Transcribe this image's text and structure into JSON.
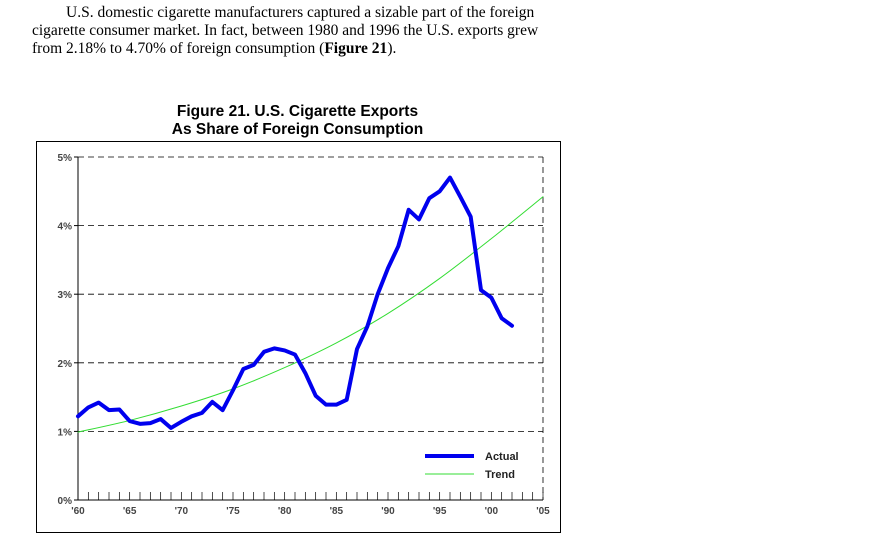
{
  "paragraph": {
    "line1": "U.S. domestic cigarette manufacturers captured a sizable part of the foreign",
    "line2": "cigarette consumer market.  In fact, between 1980 and 1996 the U.S. exports grew",
    "line3_prefix": "from 2.18% to 4.70% of foreign consumption (",
    "line3_bold": "Figure 21",
    "line3_suffix": ")."
  },
  "chart_data": {
    "type": "line",
    "title": "Figure 21.  U.S. Cigarette Exports",
    "subtitle": "As Share of Foreign Consumption",
    "xlabel": "",
    "ylabel": "",
    "xlim": [
      1960,
      2005
    ],
    "ylim": [
      0,
      5
    ],
    "x_tick_values": [
      1960,
      1965,
      1970,
      1975,
      1980,
      1985,
      1990,
      1995,
      2000,
      2005
    ],
    "x_tick_labels": [
      "'60",
      "'65",
      "'70",
      "'75",
      "'80",
      "'85",
      "'90",
      "'95",
      "'00",
      "'05"
    ],
    "y_tick_values": [
      0,
      1,
      2,
      3,
      4,
      5
    ],
    "y_tick_labels": [
      "0%",
      "1%",
      "2%",
      "3%",
      "4%",
      "5%"
    ],
    "grid": "horizontal dashed",
    "legend_position": "bottom-right",
    "colors": {
      "actual": "#0000ee",
      "trend": "#33dd33"
    },
    "series": [
      {
        "name": "Actual",
        "x": [
          1960,
          1961,
          1962,
          1963,
          1964,
          1965,
          1966,
          1967,
          1968,
          1969,
          1970,
          1971,
          1972,
          1973,
          1974,
          1975,
          1976,
          1977,
          1978,
          1979,
          1980,
          1981,
          1982,
          1983,
          1984,
          1985,
          1986,
          1987,
          1988,
          1989,
          1990,
          1991,
          1992,
          1993,
          1994,
          1995,
          1996,
          1997,
          1998,
          1999,
          2000,
          2001,
          2002
        ],
        "values": [
          1.22,
          1.35,
          1.42,
          1.31,
          1.32,
          1.15,
          1.11,
          1.12,
          1.18,
          1.05,
          1.14,
          1.22,
          1.27,
          1.43,
          1.31,
          1.6,
          1.91,
          1.97,
          2.16,
          2.21,
          2.18,
          2.12,
          1.85,
          1.52,
          1.39,
          1.39,
          1.46,
          2.2,
          2.53,
          3.0,
          3.38,
          3.7,
          4.23,
          4.09,
          4.4,
          4.5,
          4.7,
          4.42,
          4.13,
          3.06,
          2.95,
          2.65,
          2.54
        ]
      },
      {
        "name": "Trend",
        "x": [
          1960,
          1965,
          1970,
          1975,
          1980,
          1985,
          1990,
          1995,
          2000,
          2005
        ],
        "values": [
          0.99,
          1.16,
          1.37,
          1.62,
          1.93,
          2.29,
          2.72,
          3.23,
          3.81,
          4.42
        ]
      }
    ]
  }
}
